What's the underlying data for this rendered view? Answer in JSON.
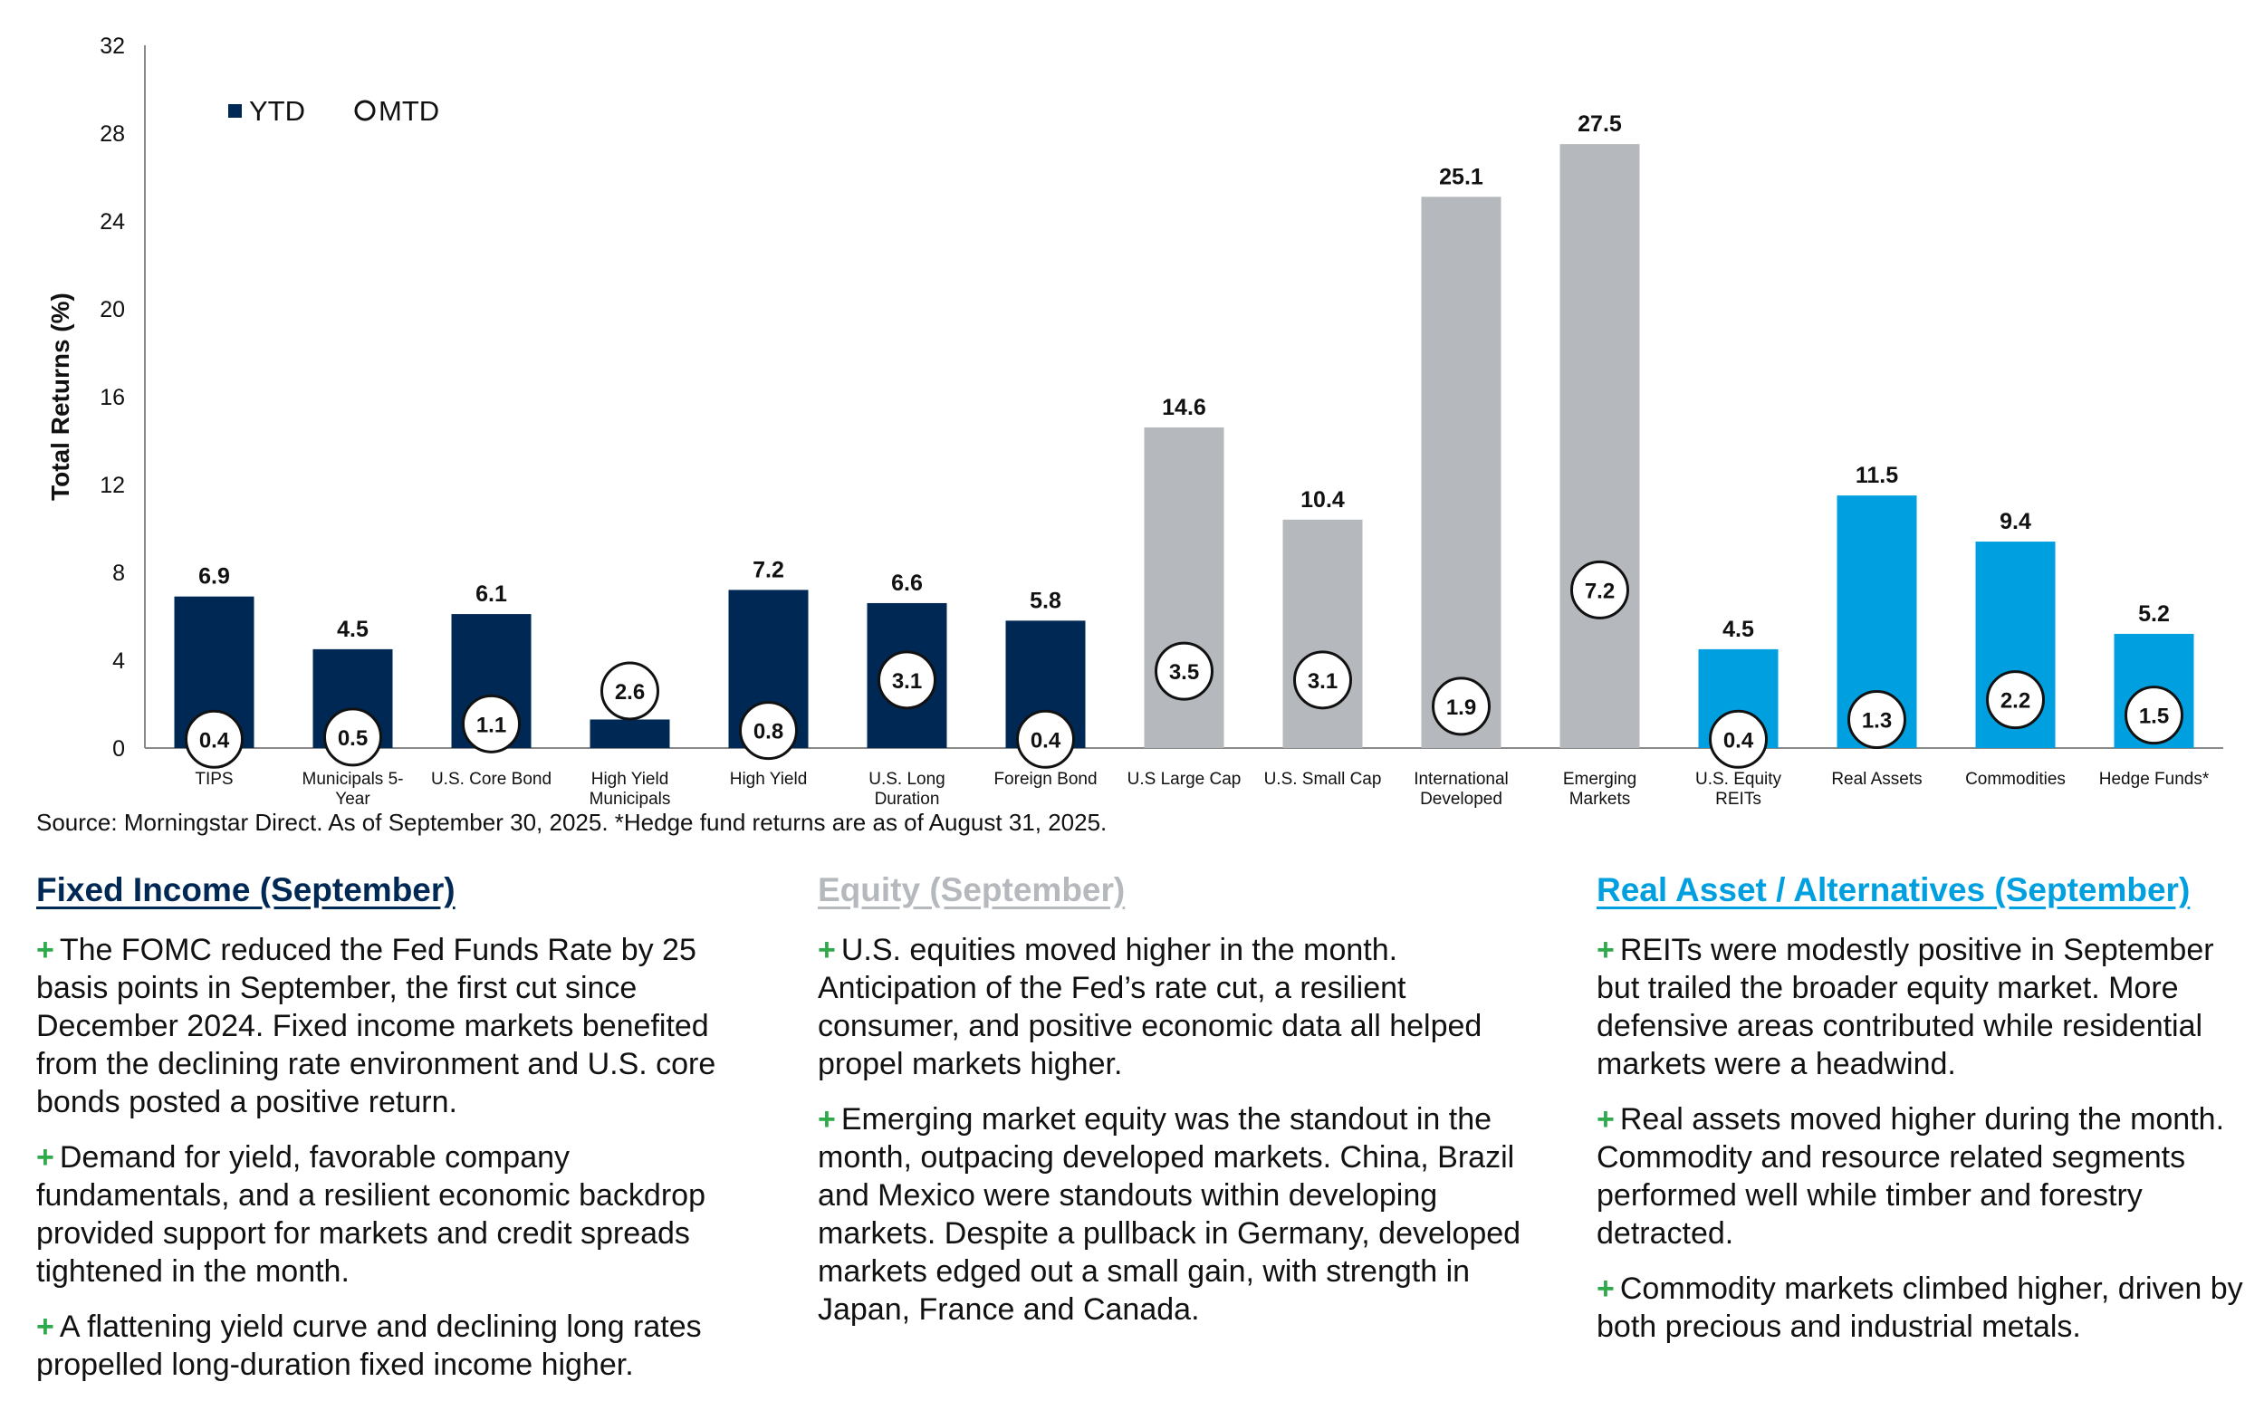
{
  "chart_data": {
    "type": "bar",
    "ylabel": "Total Returns (%)",
    "ylim": [
      0,
      32
    ],
    "yticks": [
      "0",
      "4",
      "8",
      "12",
      "16",
      "20",
      "24",
      "28",
      "32"
    ],
    "legend": {
      "ytd": "YTD",
      "mtd": "MTD",
      "position": "top-left"
    },
    "categories": [
      "TIPS",
      "Municipals 5-\nYear",
      "U.S. Core Bond",
      "High Yield\nMunicipals",
      "High Yield",
      "U.S. Long\nDuration",
      "Foreign Bond",
      "U.S Large Cap",
      "U.S. Small Cap",
      "International\nDeveloped",
      "Emerging\nMarkets",
      "U.S. Equity\nREITs",
      "Real Assets",
      "Commodities",
      "Hedge Funds*"
    ],
    "series": [
      {
        "name": "YTD",
        "values": [
          6.9,
          4.5,
          6.1,
          1.3,
          7.2,
          6.6,
          5.8,
          14.6,
          10.4,
          25.1,
          27.5,
          4.5,
          11.5,
          9.4,
          5.2
        ]
      },
      {
        "name": "MTD",
        "values": [
          0.4,
          0.5,
          1.1,
          2.6,
          0.8,
          3.1,
          0.4,
          3.5,
          3.1,
          1.9,
          7.2,
          0.4,
          1.3,
          2.2,
          1.5
        ]
      }
    ],
    "bar_groups": [
      "fixed",
      "fixed",
      "fixed",
      "fixed",
      "fixed",
      "fixed",
      "fixed",
      "equity",
      "equity",
      "equity",
      "equity",
      "real",
      "real",
      "real",
      "real"
    ],
    "colors": {
      "fixed": "#002855",
      "equity": "#B5B8BC",
      "real": "#009FDF"
    }
  },
  "source": "Source: Morningstar Direct. As of September 30, 2025. *Hedge fund returns are as of August 31, 2025.",
  "sections": {
    "fixed": {
      "title": "Fixed Income (September)",
      "color": "#002855",
      "bullets": [
        "The FOMC reduced the Fed Funds Rate by 25 basis points in September, the first cut since December 2024. Fixed income markets benefited from the declining rate environment and U.S. core bonds posted a positive return.",
        "Demand for yield, favorable company fundamentals, and a resilient economic backdrop provided support for markets and credit spreads tightened in the month.",
        "A flattening yield curve and declining long rates propelled long-duration fixed income higher."
      ]
    },
    "equity": {
      "title": "Equity (September)",
      "color": "#B5B8BC",
      "bullets": [
        "U.S. equities moved higher in the month. Anticipation of the Fed’s rate cut, a resilient consumer, and positive economic data all helped propel markets higher.",
        "Emerging market equity was the standout in the month, outpacing developed markets. China, Brazil and Mexico were standouts within developing markets. Despite a pullback in Germany, developed markets edged out a small gain, with strength in Japan, France and Canada."
      ]
    },
    "real": {
      "title": "Real Asset / Alternatives (September)",
      "color": "#009FDF",
      "bullets": [
        "REITs were modestly positive in September but trailed the broader equity market. More defensive areas contributed while residential markets were a headwind.",
        "Real assets moved higher during the month. Commodity and resource related segments performed well while timber and forestry detracted.",
        "Commodity markets climbed higher, driven by both precious and industrial metals."
      ]
    },
    "bullet_symbol": "+",
    "bullet_color": "#2EAA4B"
  }
}
